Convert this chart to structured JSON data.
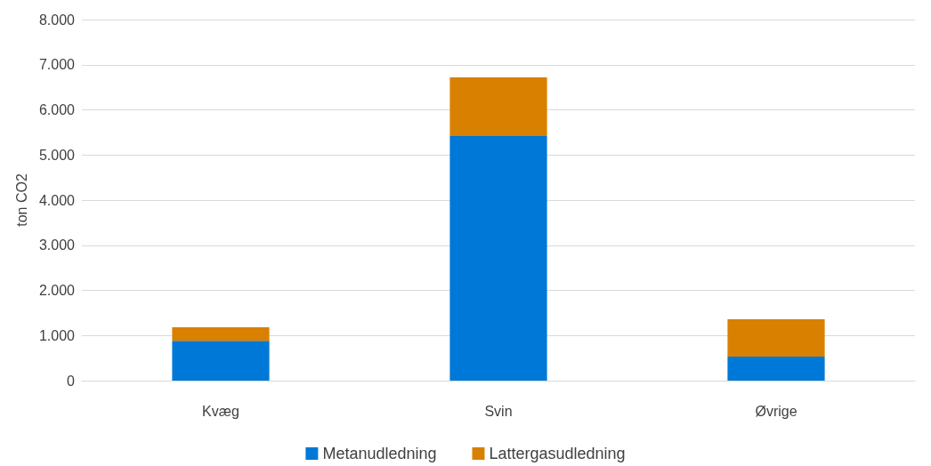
{
  "chart_data": {
    "type": "bar",
    "ylabel": "ton CO2",
    "categories": [
      "Kvæg",
      "Svin",
      "Øvrige"
    ],
    "stacked": true,
    "series": [
      {
        "name": "Metanudledning",
        "color": "#0078d7",
        "values": [
          880,
          5420,
          530
        ]
      },
      {
        "name": "Lattergasudledning",
        "color": "#d98000",
        "values": [
          300,
          1300,
          830
        ]
      }
    ],
    "ylim": [
      0,
      8000
    ],
    "yticks": [
      {
        "value": 0,
        "label": "0"
      },
      {
        "value": 1000,
        "label": "1.000"
      },
      {
        "value": 2000,
        "label": "2.000"
      },
      {
        "value": 3000,
        "label": "3.000"
      },
      {
        "value": 4000,
        "label": "4.000"
      },
      {
        "value": 5000,
        "label": "5.000"
      },
      {
        "value": 6000,
        "label": "6.000"
      },
      {
        "value": 7000,
        "label": "7.000"
      },
      {
        "value": 8000,
        "label": "8.000"
      }
    ],
    "grid": "y",
    "legend": "bottom"
  }
}
